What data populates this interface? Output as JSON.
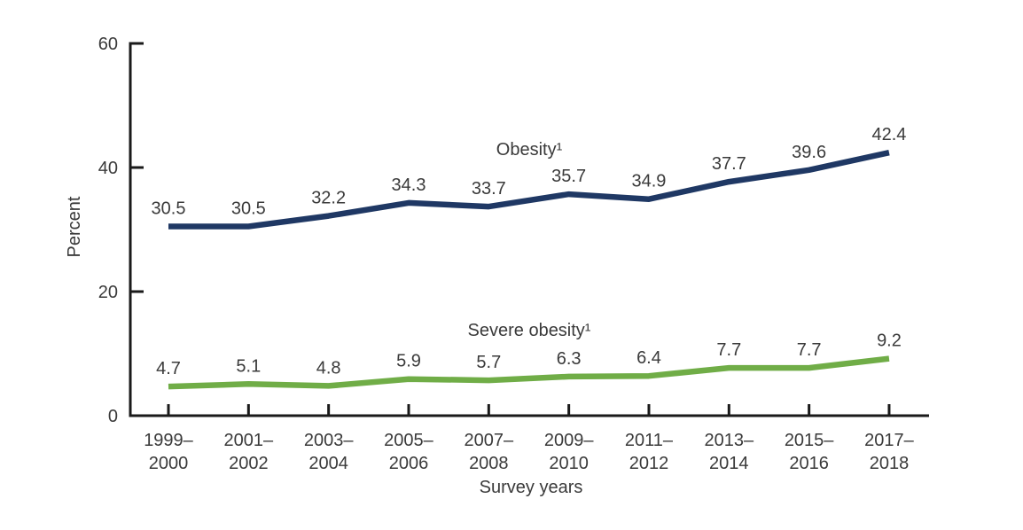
{
  "chart_data": {
    "type": "line",
    "title": "",
    "xlabel": "Survey years",
    "ylabel": "Percent",
    "ylim": [
      0,
      60
    ],
    "yticks": [
      60,
      40,
      20,
      0
    ],
    "grid": false,
    "legend_position": "inline-labels-above-lines",
    "categories": [
      [
        "1999–",
        "2000"
      ],
      [
        "2001–",
        "2002"
      ],
      [
        "2003–",
        "2004"
      ],
      [
        "2005–",
        "2006"
      ],
      [
        "2007–",
        "2008"
      ],
      [
        "2009–",
        "2010"
      ],
      [
        "2011–",
        "2012"
      ],
      [
        "2013–",
        "2014"
      ],
      [
        "2015–",
        "2016"
      ],
      [
        "2017–",
        "2018"
      ]
    ],
    "series": [
      {
        "name": "Obesity¹",
        "color": "#1f3864",
        "values": [
          30.5,
          30.5,
          32.2,
          34.3,
          33.7,
          35.7,
          34.9,
          37.7,
          39.6,
          42.4
        ]
      },
      {
        "name": "Severe obesity¹",
        "color": "#70ad47",
        "values": [
          4.7,
          5.1,
          4.8,
          5.9,
          5.7,
          6.3,
          6.4,
          7.7,
          7.7,
          9.2
        ]
      }
    ]
  },
  "colors": {
    "axis": "#1a1a1a",
    "text": "#3a3a3a",
    "background": "#ffffff"
  }
}
